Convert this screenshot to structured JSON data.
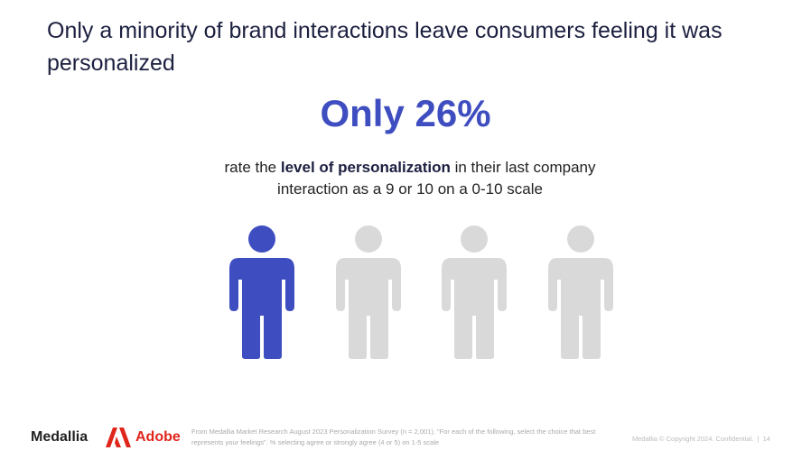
{
  "header": {
    "title": "Only a minority of brand interactions leave consumers feeling it was personalized"
  },
  "stat": {
    "headline": "Only 26%",
    "description": {
      "before": "rate the ",
      "bold": "level of personalization",
      "after": " in their last company interaction as a 9 or 10 on a 0-10 scale"
    }
  },
  "footer": {
    "logos": [
      "Medallia",
      "Adobe"
    ],
    "source": "From Medallia Market Research August 2023 Personalization Survey (n = 2,001). \"For each of the following, select the choice that best represents your feelings\". % selecting agree or strongly agree (4 or 5) on 1-5 scale",
    "copyright": "Medallia © Copyright 2024. Confidential.  |  14"
  }
}
